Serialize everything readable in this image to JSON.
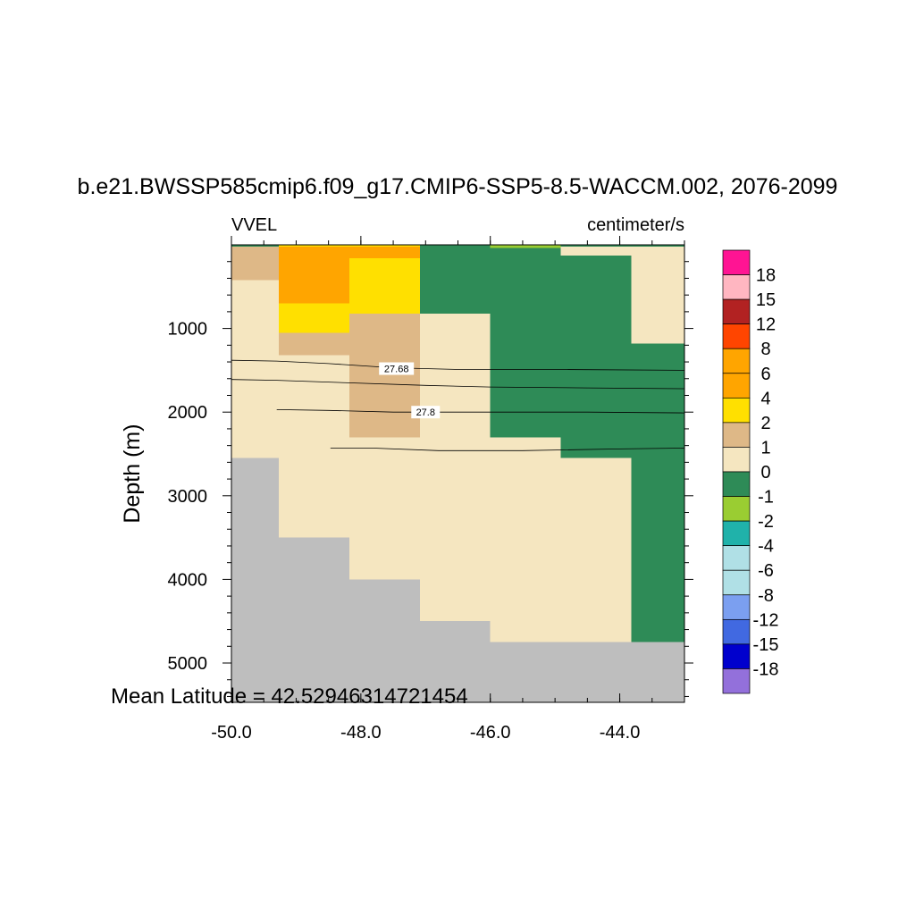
{
  "chart_data": {
    "type": "heatmap",
    "title": "b.e21.BWSSP585cmip6.f09_g17.CMIP6-SSP5-8.5-WACCM.002, 2076-2099",
    "left_label": "VVEL",
    "right_label": "centimeter/s",
    "ylabel": "Depth (m)",
    "xlabel": "",
    "footnote": "Mean Latitude = 42.52946314721454",
    "xlim": [
      -50.0,
      -43.0
    ],
    "ylim": [
      5470,
      0
    ],
    "x_ticks": [
      -50.0,
      -48.0,
      -46.0,
      -44.0
    ],
    "x_tick_labels": [
      "-50.0",
      "-48.0",
      "-46.0",
      "-44.0"
    ],
    "y_ticks": [
      1000,
      2000,
      3000,
      4000,
      5000
    ],
    "y_tick_labels": [
      "1000",
      "2000",
      "3000",
      "4000",
      "5000"
    ],
    "colorbar": {
      "labels": [
        "18",
        "15",
        "12",
        "8",
        "6",
        "4",
        "2",
        "1",
        "0",
        "-1",
        "-2",
        "-4",
        "-6",
        "-8",
        "-12",
        "-15",
        "-18"
      ],
      "colors": [
        "#FF1493",
        "#FFB6C1",
        "#B22222",
        "#FF4500",
        "#FFA500",
        "#FFA500",
        "#FFE000",
        "#DEB887",
        "#F5E6C0",
        "#2E8B57",
        "#9ACD32",
        "#20B2AA",
        "#B0E0E6",
        "#B0E0E6",
        "#7B9FF0",
        "#4169E1",
        "#0000CD",
        "#9370DB"
      ]
    },
    "fill_colors": {
      "land": "#BEBEBE",
      "0to1": "#F5E6C0",
      "1to2": "#DEB887",
      "2to4": "#FFE000",
      "6to8": "#FFA500",
      "m1to0": "#2E8B57",
      "m2tom1": "#9ACD32"
    },
    "cells": [
      {
        "x": [
          -50.0,
          -43.0
        ],
        "y": [
          0,
          5470
        ],
        "v": "0to1"
      },
      {
        "x": [
          -50.0,
          -49.27
        ],
        "y": [
          2550,
          5470
        ],
        "v": "land"
      },
      {
        "x": [
          -49.27,
          -48.18
        ],
        "y": [
          3500,
          5470
        ],
        "v": "land"
      },
      {
        "x": [
          -48.18,
          -47.09
        ],
        "y": [
          4000,
          5470
        ],
        "v": "land"
      },
      {
        "x": [
          -47.09,
          -46.0
        ],
        "y": [
          4500,
          5470
        ],
        "v": "land"
      },
      {
        "x": [
          -46.0,
          -43.0
        ],
        "y": [
          4750,
          5470
        ],
        "v": "land"
      },
      {
        "x": [
          -50.0,
          -49.27
        ],
        "y": [
          20,
          420
        ],
        "v": "1to2"
      },
      {
        "x": [
          -49.27,
          -48.18
        ],
        "y": [
          20,
          700
        ],
        "v": "6to8"
      },
      {
        "x": [
          -48.18,
          -47.09
        ],
        "y": [
          20,
          160
        ],
        "v": "6to8"
      },
      {
        "x": [
          -48.18,
          -47.09
        ],
        "y": [
          160,
          820
        ],
        "v": "2to4"
      },
      {
        "x": [
          -49.27,
          -48.18
        ],
        "y": [
          700,
          1050
        ],
        "v": "2to4"
      },
      {
        "x": [
          -49.27,
          -48.18
        ],
        "y": [
          1050,
          1320
        ],
        "v": "1to2"
      },
      {
        "x": [
          -48.18,
          -47.09
        ],
        "y": [
          820,
          2300
        ],
        "v": "1to2"
      },
      {
        "x": [
          -49.27,
          -47.09
        ],
        "y": [
          0,
          20
        ],
        "v": "2to4"
      },
      {
        "x": [
          -47.09,
          -46.0
        ],
        "y": [
          20,
          820
        ],
        "v": "m1to0"
      },
      {
        "x": [
          -46.0,
          -43.0
        ],
        "y": [
          20,
          2300
        ],
        "v": "m1to0"
      },
      {
        "x": [
          -44.91,
          -43.0
        ],
        "y": [
          2300,
          2550
        ],
        "v": "m1to0"
      },
      {
        "x": [
          -43.82,
          -43.0
        ],
        "y": [
          2550,
          4750
        ],
        "v": "m1to0"
      },
      {
        "x": [
          -44.91,
          -43.82
        ],
        "y": [
          20,
          130
        ],
        "v": "0to1"
      },
      {
        "x": [
          -43.82,
          -43.0
        ],
        "y": [
          20,
          1180
        ],
        "v": "0to1"
      },
      {
        "x": [
          -46.0,
          -44.91
        ],
        "y": [
          0,
          35
        ],
        "v": "m2tom1"
      },
      {
        "x": [
          -50.0,
          -49.27
        ],
        "y": [
          0,
          20
        ],
        "v": "m1to0"
      },
      {
        "x": [
          -47.09,
          -46.0
        ],
        "y": [
          0,
          20
        ],
        "v": "m1to0"
      },
      {
        "x": [
          -44.91,
          -43.0
        ],
        "y": [
          0,
          20
        ],
        "v": "m1to0"
      }
    ],
    "contours": [
      {
        "label": "27.68",
        "label_at": [
          -47.45,
          1480
        ],
        "points": [
          [
            -50.0,
            1380
          ],
          [
            -49.3,
            1390
          ],
          [
            -48.5,
            1420
          ],
          [
            -47.5,
            1470
          ],
          [
            -46.5,
            1490
          ],
          [
            -45.0,
            1490
          ],
          [
            -43.0,
            1500
          ]
        ]
      },
      {
        "label": "",
        "points": [
          [
            -50.0,
            1610
          ],
          [
            -49.3,
            1620
          ],
          [
            -48.2,
            1650
          ],
          [
            -47.0,
            1680
          ],
          [
            -46.0,
            1700
          ],
          [
            -44.5,
            1710
          ],
          [
            -43.0,
            1720
          ]
        ]
      },
      {
        "label": "27.8",
        "label_at": [
          -47.0,
          2000
        ],
        "points": [
          [
            -49.3,
            1970
          ],
          [
            -48.5,
            1980
          ],
          [
            -47.5,
            2000
          ],
          [
            -46.0,
            2000
          ],
          [
            -44.5,
            2000
          ],
          [
            -43.0,
            2010
          ]
        ]
      },
      {
        "label": "",
        "points": [
          [
            -48.47,
            2430
          ],
          [
            -47.8,
            2430
          ],
          [
            -46.8,
            2460
          ],
          [
            -45.5,
            2460
          ],
          [
            -44.0,
            2440
          ],
          [
            -43.0,
            2430
          ]
        ]
      }
    ]
  }
}
